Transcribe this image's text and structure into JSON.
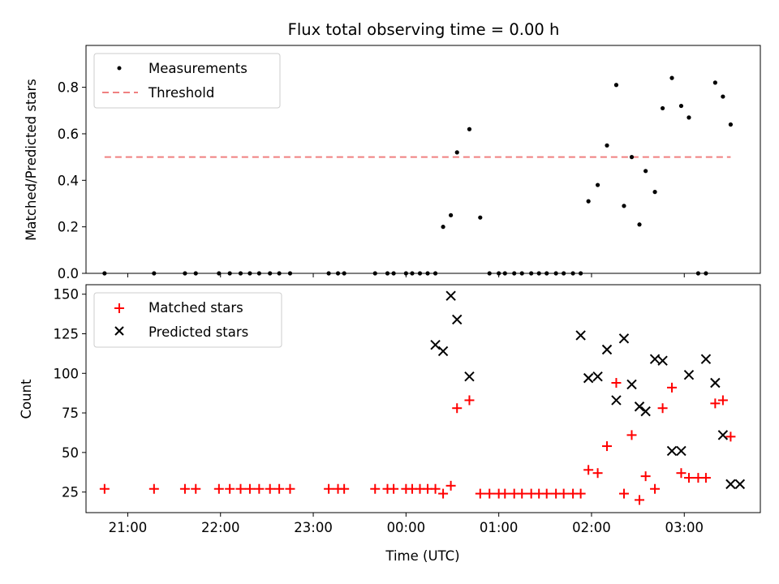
{
  "title": "Flux total observing time = 0.00 h",
  "colors": {
    "measurement": "#000000",
    "threshold": "#f08080",
    "matched": "#ff0000",
    "predicted": "#000000"
  },
  "chart_data": [
    {
      "type": "scatter",
      "ylabel": "Matched/Predicted stars",
      "ylim": [
        0,
        0.98
      ],
      "yticks": [
        0.0,
        0.2,
        0.4,
        0.6,
        0.8
      ],
      "ytick_labels": [
        "0.0",
        "0.2",
        "0.4",
        "0.6",
        "0.8"
      ],
      "xlim_hours": [
        -3.45,
        3.82
      ],
      "grid": false,
      "legend": {
        "position": "upper left",
        "entries": [
          "Measurements",
          "Threshold"
        ]
      },
      "threshold": {
        "name": "Threshold",
        "value": 0.5,
        "x_start": "20:45",
        "x_end": "03:30"
      },
      "series": [
        {
          "name": "Measurements",
          "x": [
            "20:45",
            "21:17",
            "21:37",
            "21:44",
            "21:59",
            "22:06",
            "22:13",
            "22:19",
            "22:25",
            "22:32",
            "22:38",
            "22:45",
            "23:10",
            "23:16",
            "23:20",
            "23:40",
            "23:48",
            "23:52",
            "24:00",
            "00:04",
            "00:09",
            "00:14",
            "00:19",
            "00:24",
            "00:29",
            "00:33",
            "00:41",
            "00:48",
            "00:54",
            "01:00",
            "01:04",
            "01:10",
            "01:15",
            "01:21",
            "01:26",
            "01:31",
            "01:37",
            "01:42",
            "01:48",
            "01:53",
            "01:58",
            "02:04",
            "02:10",
            "02:16",
            "02:21",
            "02:26",
            "02:31",
            "02:35",
            "02:41",
            "02:46",
            "02:52",
            "02:58",
            "03:03",
            "03:09",
            "03:14",
            "03:20",
            "03:25",
            "03:30"
          ],
          "y": [
            0,
            0,
            0,
            0,
            0,
            0,
            0,
            0,
            0,
            0,
            0,
            0,
            0,
            0,
            0,
            0,
            0,
            0,
            0,
            0,
            0,
            0,
            0,
            0.2,
            0.25,
            0.52,
            0.62,
            0.24,
            0,
            0,
            0,
            0,
            0,
            0,
            0,
            0,
            0,
            0,
            0,
            0,
            0.31,
            0.38,
            0.55,
            0.81,
            0.29,
            0.5,
            0.21,
            0.44,
            0.35,
            0.71,
            0.84,
            0.72,
            0.67,
            0,
            0,
            0.82,
            0.76,
            0.64
          ]
        }
      ]
    },
    {
      "type": "scatter",
      "ylabel": "Count",
      "xlabel": "Time (UTC)",
      "ylim": [
        12,
        156
      ],
      "yticks": [
        25,
        50,
        75,
        100,
        125,
        150
      ],
      "ytick_labels": [
        "25",
        "50",
        "75",
        "100",
        "125",
        "150"
      ],
      "xticks": [
        "21:00",
        "22:00",
        "23:00",
        "00:00",
        "01:00",
        "02:00",
        "03:00"
      ],
      "xlim_hours": [
        -3.45,
        3.82
      ],
      "grid": false,
      "legend": {
        "position": "upper left",
        "entries": [
          "Matched stars",
          "Predicted stars"
        ]
      },
      "series": [
        {
          "name": "Matched stars",
          "marker": "+",
          "x": [
            "20:45",
            "21:17",
            "21:37",
            "21:44",
            "21:59",
            "22:06",
            "22:13",
            "22:19",
            "22:25",
            "22:32",
            "22:38",
            "22:45",
            "23:10",
            "23:16",
            "23:20",
            "23:40",
            "23:48",
            "23:52",
            "24:00",
            "00:04",
            "00:09",
            "00:14",
            "00:19",
            "00:24",
            "00:29",
            "00:33",
            "00:41",
            "00:48",
            "00:54",
            "01:00",
            "01:04",
            "01:10",
            "01:15",
            "01:21",
            "01:26",
            "01:31",
            "01:37",
            "01:42",
            "01:48",
            "01:53",
            "01:58",
            "02:04",
            "02:10",
            "02:16",
            "02:21",
            "02:26",
            "02:31",
            "02:35",
            "02:41",
            "02:46",
            "02:52",
            "02:58",
            "03:03",
            "03:09",
            "03:14",
            "03:20",
            "03:25",
            "03:30"
          ],
          "y": [
            27,
            27,
            27,
            27,
            27,
            27,
            27,
            27,
            27,
            27,
            27,
            27,
            27,
            27,
            27,
            27,
            27,
            27,
            27,
            27,
            27,
            27,
            27,
            24,
            29,
            78,
            83,
            24,
            24,
            24,
            24,
            24,
            24,
            24,
            24,
            24,
            24,
            24,
            24,
            24,
            39,
            37,
            54,
            94,
            24,
            61,
            20,
            35,
            27,
            78,
            91,
            37,
            34,
            34,
            34,
            81,
            83,
            60
          ]
        },
        {
          "name": "Predicted stars",
          "marker": "x",
          "x": [
            "00:19",
            "00:24",
            "00:29",
            "00:33",
            "00:41",
            "01:53",
            "01:58",
            "02:04",
            "02:10",
            "02:16",
            "02:21",
            "02:26",
            "02:31",
            "02:35",
            "02:41",
            "02:46",
            "02:52",
            "02:58",
            "03:03",
            "03:14",
            "03:20",
            "03:25",
            "03:30",
            "03:36"
          ],
          "y": [
            118,
            114,
            149,
            134,
            98,
            124,
            97,
            98,
            115,
            83,
            122,
            93,
            79,
            76,
            109,
            108,
            51,
            51,
            99,
            109,
            94,
            61,
            30,
            30
          ]
        }
      ]
    }
  ]
}
